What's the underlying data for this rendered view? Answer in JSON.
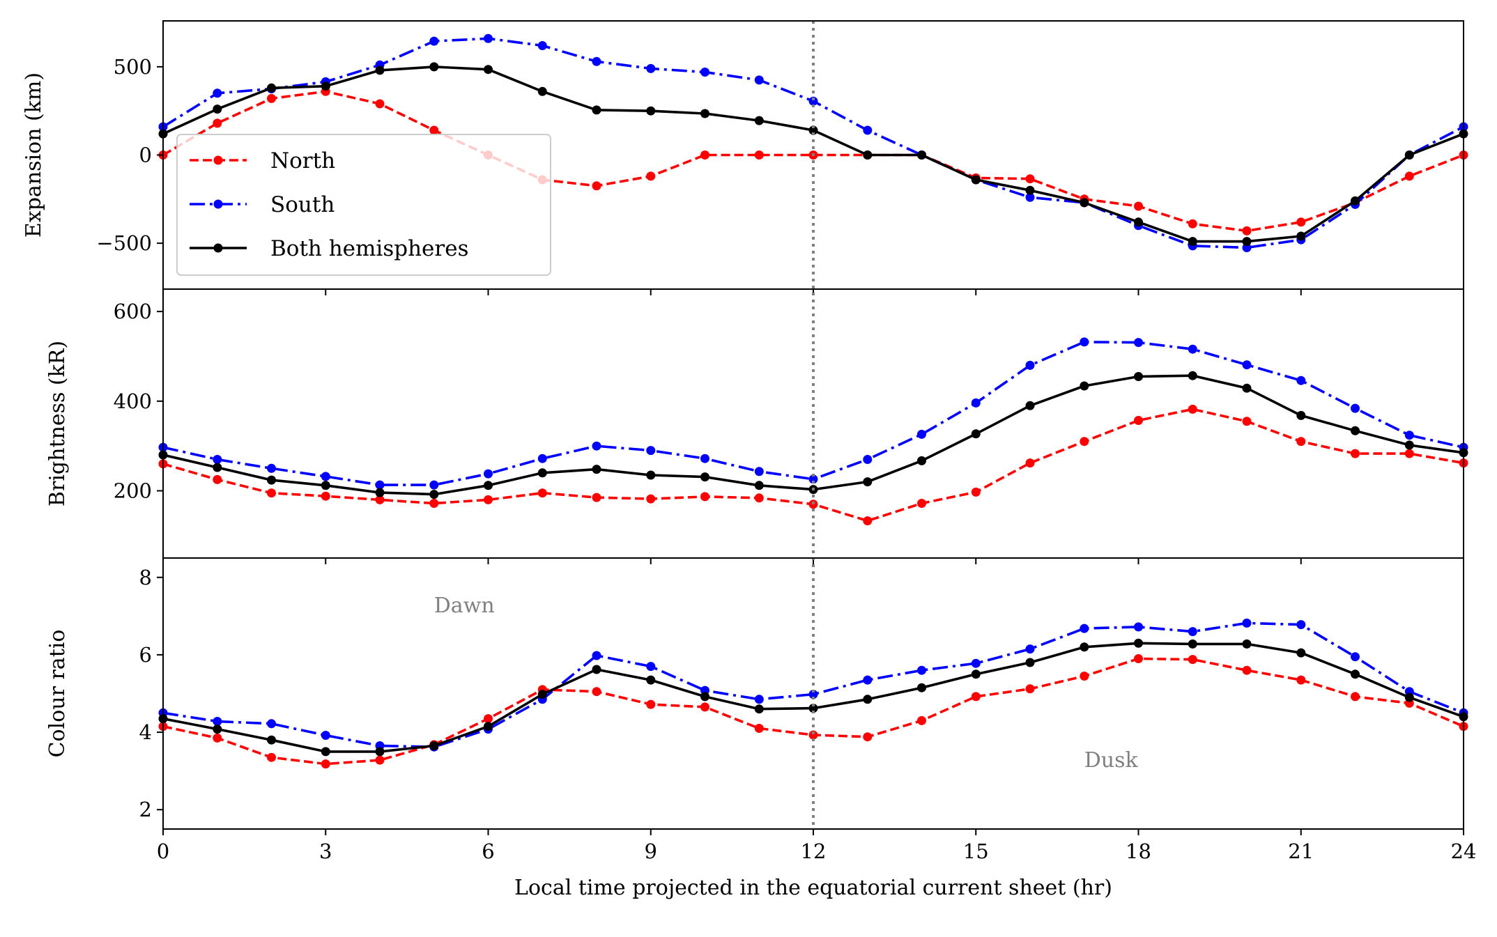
{
  "chart_data": {
    "type": "line",
    "shared_x": {
      "label": "Local time projected in the equatorial current sheet (hr)",
      "lim": [
        0,
        24
      ],
      "ticks": [
        0,
        3,
        6,
        9,
        12,
        15,
        18,
        21,
        24
      ],
      "tick_labels": [
        "0",
        "3",
        "6",
        "9",
        "12",
        "15",
        "18",
        "21",
        "24"
      ]
    },
    "x": [
      0,
      1,
      2,
      3,
      4,
      5,
      6,
      7,
      8,
      9,
      10,
      11,
      12,
      13,
      14,
      15,
      16,
      17,
      18,
      19,
      20,
      21,
      22,
      23,
      24
    ],
    "reference_line": {
      "x": 12,
      "style": "dotted",
      "color": "#808080"
    },
    "legend": {
      "location": "lower-left of top panel",
      "entries": [
        "North",
        "South",
        "Both hemispheres"
      ]
    },
    "colors": {
      "North": "#ff0000",
      "South": "#0000ff",
      "Both hemispheres": "#000000",
      "reference": "#808080"
    },
    "panels": [
      {
        "ylabel": "Expansion (km)",
        "ylim": [
          -760,
          760
        ],
        "yticks": [
          -500,
          0,
          500
        ],
        "ytick_labels": [
          "−500",
          "0",
          "500"
        ],
        "series": [
          {
            "name": "North",
            "values": [
              0,
              180,
              320,
              360,
              290,
              140,
              0,
              -140,
              -175,
              -120,
              0,
              0,
              0,
              0,
              0,
              -130,
              -135,
              -250,
              -290,
              -390,
              -430,
              -380,
              -270,
              -120,
              0
            ]
          },
          {
            "name": "South",
            "values": [
              160,
              350,
              375,
              415,
              510,
              645,
              660,
              620,
              530,
              490,
              470,
              425,
              305,
              140,
              0,
              -140,
              -240,
              -270,
              -400,
              -515,
              -525,
              -480,
              -280,
              0,
              160
            ]
          },
          {
            "name": "Both hemispheres",
            "values": [
              120,
              260,
              380,
              390,
              480,
              500,
              485,
              360,
              255,
              250,
              235,
              195,
              140,
              0,
              0,
              -140,
              -200,
              -270,
              -380,
              -490,
              -490,
              -460,
              -260,
              0,
              120
            ]
          }
        ]
      },
      {
        "ylabel": "Brightness (kR)",
        "ylim": [
          50,
          650
        ],
        "yticks": [
          200,
          400,
          600
        ],
        "ytick_labels": [
          "200",
          "400",
          "600"
        ],
        "series": [
          {
            "name": "North",
            "values": [
              260,
              225,
              195,
              188,
              180,
              172,
              180,
              195,
              185,
              182,
              187,
              184,
              170,
              133,
              172,
              197,
              262,
              310,
              357,
              382,
              355,
              310,
              283,
              283,
              262
            ]
          },
          {
            "name": "South",
            "values": [
              297,
              270,
              250,
              232,
              213,
              213,
              238,
              272,
              300,
              290,
              272,
              243,
              226,
              270,
              326,
              396,
              480,
              532,
              531,
              516,
              481,
              446,
              384,
              324,
              297
            ]
          },
          {
            "name": "Both hemispheres",
            "values": [
              280,
              252,
              224,
              212,
              196,
              192,
              212,
              240,
              248,
              235,
              231,
              212,
              203,
              220,
              267,
              327,
              390,
              434,
              455,
              457,
              429,
              368,
              334,
              302,
              285
            ]
          }
        ]
      },
      {
        "ylabel": "Colour ratio",
        "ylim": [
          1.5,
          8.5
        ],
        "yticks": [
          2,
          4,
          6,
          8
        ],
        "ytick_labels": [
          "2",
          "4",
          "6",
          "8"
        ],
        "annotations": [
          {
            "text": "Dawn",
            "x": 5,
            "y": 7.1,
            "color": "#808080"
          },
          {
            "text": "Dusk",
            "x": 17,
            "y": 3.1,
            "color": "#808080"
          }
        ],
        "series": [
          {
            "name": "North",
            "values": [
              4.15,
              3.85,
              3.35,
              3.18,
              3.28,
              3.68,
              4.35,
              5.1,
              5.05,
              4.72,
              4.65,
              4.1,
              3.93,
              3.88,
              4.3,
              4.92,
              5.12,
              5.45,
              5.9,
              5.88,
              5.6,
              5.35,
              4.92,
              4.75,
              4.15
            ]
          },
          {
            "name": "South",
            "values": [
              4.5,
              4.28,
              4.22,
              3.92,
              3.65,
              3.62,
              4.08,
              4.85,
              5.98,
              5.7,
              5.08,
              4.85,
              4.98,
              5.35,
              5.6,
              5.78,
              6.15,
              6.68,
              6.72,
              6.6,
              6.82,
              6.78,
              5.95,
              5.05,
              4.5
            ]
          },
          {
            "name": "Both hemispheres",
            "values": [
              4.35,
              4.08,
              3.8,
              3.5,
              3.5,
              3.65,
              4.15,
              4.98,
              5.62,
              5.35,
              4.92,
              4.6,
              4.62,
              4.85,
              5.15,
              5.5,
              5.8,
              6.2,
              6.3,
              6.28,
              6.28,
              6.05,
              5.5,
              4.9,
              4.4
            ]
          }
        ]
      }
    ]
  }
}
